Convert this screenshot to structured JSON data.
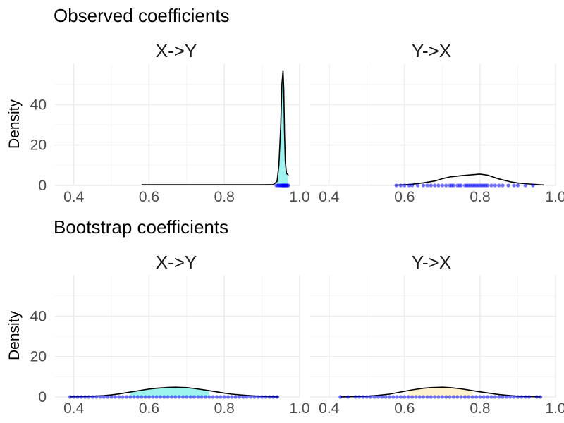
{
  "chart_data": [
    {
      "type": "area",
      "section_title": "Observed coefficients",
      "panel": "X->Y",
      "ylabel": "Density",
      "xlabel": "",
      "xlim": [
        0.35,
        1.0
      ],
      "ylim": [
        0,
        60
      ],
      "x_ticks": [
        "0.4",
        "0.6",
        "0.8",
        "1.0"
      ],
      "y_ticks": [
        "0",
        "20",
        "40"
      ],
      "grid": true,
      "fill_color": "#9ef3ee",
      "density": {
        "x": [
          0.58,
          0.7,
          0.8,
          0.9,
          0.93,
          0.94,
          0.945,
          0.95,
          0.953,
          0.956,
          0.958,
          0.96,
          0.962,
          0.965,
          0.968,
          0.97
        ],
        "y": [
          0.3,
          0.3,
          0.3,
          0.3,
          0.4,
          2,
          10,
          30,
          50,
          57,
          47,
          26,
          12,
          6,
          5.5,
          5
        ]
      },
      "filled_segment": [
        0.94,
        0.97
      ],
      "rug_points": [
        0.938,
        0.942,
        0.945,
        0.948,
        0.95,
        0.952,
        0.954,
        0.955,
        0.956,
        0.957,
        0.958,
        0.959,
        0.96,
        0.961,
        0.962,
        0.963,
        0.964,
        0.966,
        0.968,
        0.97
      ]
    },
    {
      "type": "area",
      "section_title": "Observed coefficients",
      "panel": "Y->X",
      "ylabel": "",
      "xlabel": "",
      "xlim": [
        0.35,
        1.0
      ],
      "ylim": [
        0,
        60
      ],
      "x_ticks": [
        "0.4",
        "0.6",
        "0.8",
        "1.0"
      ],
      "y_ticks": [
        "0",
        "20",
        "40"
      ],
      "grid": true,
      "fill_color": "#ffffff",
      "density": {
        "x": [
          0.575,
          0.6,
          0.62,
          0.65,
          0.68,
          0.7,
          0.72,
          0.75,
          0.78,
          0.8,
          0.82,
          0.85,
          0.88,
          0.9,
          0.93,
          0.97
        ],
        "y": [
          0.1,
          0.3,
          0.6,
          1.3,
          2.2,
          3.3,
          4.2,
          4.8,
          5.3,
          5.6,
          5.1,
          3.2,
          1.8,
          1.2,
          0.7,
          0.2
        ]
      },
      "filled_segment": [],
      "rug_points": [
        0.578,
        0.59,
        0.6,
        0.612,
        0.62,
        0.635,
        0.65,
        0.66,
        0.67,
        0.68,
        0.69,
        0.7,
        0.71,
        0.72,
        0.725,
        0.73,
        0.74,
        0.745,
        0.75,
        0.76,
        0.765,
        0.77,
        0.775,
        0.78,
        0.785,
        0.79,
        0.795,
        0.8,
        0.805,
        0.81,
        0.815,
        0.82,
        0.83,
        0.84,
        0.85,
        0.86,
        0.875,
        0.89,
        0.9,
        0.92,
        0.94
      ]
    },
    {
      "type": "area",
      "section_title": "Bootstrap coefficients",
      "panel": "X->Y",
      "ylabel": "Density",
      "xlabel": "",
      "xlim": [
        0.35,
        1.0
      ],
      "ylim": [
        0,
        60
      ],
      "x_ticks": [
        "0.4",
        "0.6",
        "0.8",
        "1.0"
      ],
      "y_ticks": [
        "0",
        "20",
        "40"
      ],
      "grid": true,
      "fill_color": "#9ef3ee",
      "density": {
        "x": [
          0.39,
          0.42,
          0.45,
          0.48,
          0.5,
          0.52,
          0.55,
          0.58,
          0.6,
          0.62,
          0.65,
          0.67,
          0.7,
          0.72,
          0.75,
          0.78,
          0.8,
          0.82,
          0.85,
          0.88,
          0.9,
          0.92,
          0.945
        ],
        "y": [
          0.1,
          0.2,
          0.4,
          0.7,
          1.0,
          1.5,
          2.4,
          3.3,
          3.9,
          4.3,
          4.7,
          4.8,
          4.6,
          4.2,
          3.4,
          2.5,
          1.9,
          1.4,
          0.9,
          0.5,
          0.3,
          0.2,
          0.05
        ]
      },
      "filled_segment": [
        0.55,
        0.76
      ],
      "rug_points": [
        0.39,
        0.4,
        0.41,
        0.42,
        0.43,
        0.44,
        0.45,
        0.46,
        0.47,
        0.48,
        0.49,
        0.5,
        0.51,
        0.52,
        0.53,
        0.54,
        0.55,
        0.56,
        0.57,
        0.58,
        0.59,
        0.6,
        0.61,
        0.62,
        0.63,
        0.64,
        0.65,
        0.66,
        0.67,
        0.68,
        0.69,
        0.7,
        0.71,
        0.72,
        0.73,
        0.74,
        0.75,
        0.76,
        0.77,
        0.78,
        0.79,
        0.8,
        0.81,
        0.82,
        0.83,
        0.84,
        0.85,
        0.86,
        0.87,
        0.88,
        0.89,
        0.9,
        0.91,
        0.92,
        0.93,
        0.94
      ]
    },
    {
      "type": "area",
      "section_title": "Bootstrap coefficients",
      "panel": "Y->X",
      "ylabel": "",
      "xlabel": "",
      "xlim": [
        0.35,
        1.0
      ],
      "ylim": [
        0,
        60
      ],
      "x_ticks": [
        "0.4",
        "0.6",
        "0.8",
        "1.0"
      ],
      "y_ticks": [
        "0",
        "20",
        "40"
      ],
      "grid": true,
      "fill_color": "#fff2cc",
      "density": {
        "x": [
          0.43,
          0.47,
          0.5,
          0.53,
          0.56,
          0.58,
          0.6,
          0.62,
          0.65,
          0.67,
          0.7,
          0.72,
          0.75,
          0.78,
          0.8,
          0.83,
          0.85,
          0.88,
          0.9,
          0.93,
          0.96
        ],
        "y": [
          0.05,
          0.2,
          0.4,
          0.8,
          1.4,
          2.1,
          2.8,
          3.5,
          4.3,
          4.6,
          4.8,
          4.6,
          4.0,
          3.1,
          2.5,
          1.7,
          1.2,
          0.7,
          0.4,
          0.2,
          0.05
        ]
      },
      "filled_segment": [
        0.61,
        0.78
      ],
      "rug_points": [
        0.43,
        0.45,
        0.47,
        0.48,
        0.49,
        0.5,
        0.51,
        0.52,
        0.53,
        0.54,
        0.55,
        0.56,
        0.57,
        0.58,
        0.59,
        0.6,
        0.61,
        0.62,
        0.63,
        0.64,
        0.65,
        0.66,
        0.67,
        0.68,
        0.69,
        0.7,
        0.71,
        0.72,
        0.73,
        0.74,
        0.75,
        0.76,
        0.77,
        0.78,
        0.79,
        0.8,
        0.81,
        0.82,
        0.83,
        0.84,
        0.85,
        0.86,
        0.87,
        0.88,
        0.89,
        0.9,
        0.91,
        0.92,
        0.93,
        0.95,
        0.96
      ]
    }
  ],
  "style": {
    "line_color": "#000000",
    "rug_color": "#0000ff",
    "grid_color": "#ebebeb"
  },
  "sections": {
    "observed_title": "Observed coefficients",
    "bootstrap_title": "Bootstrap coefficients"
  }
}
